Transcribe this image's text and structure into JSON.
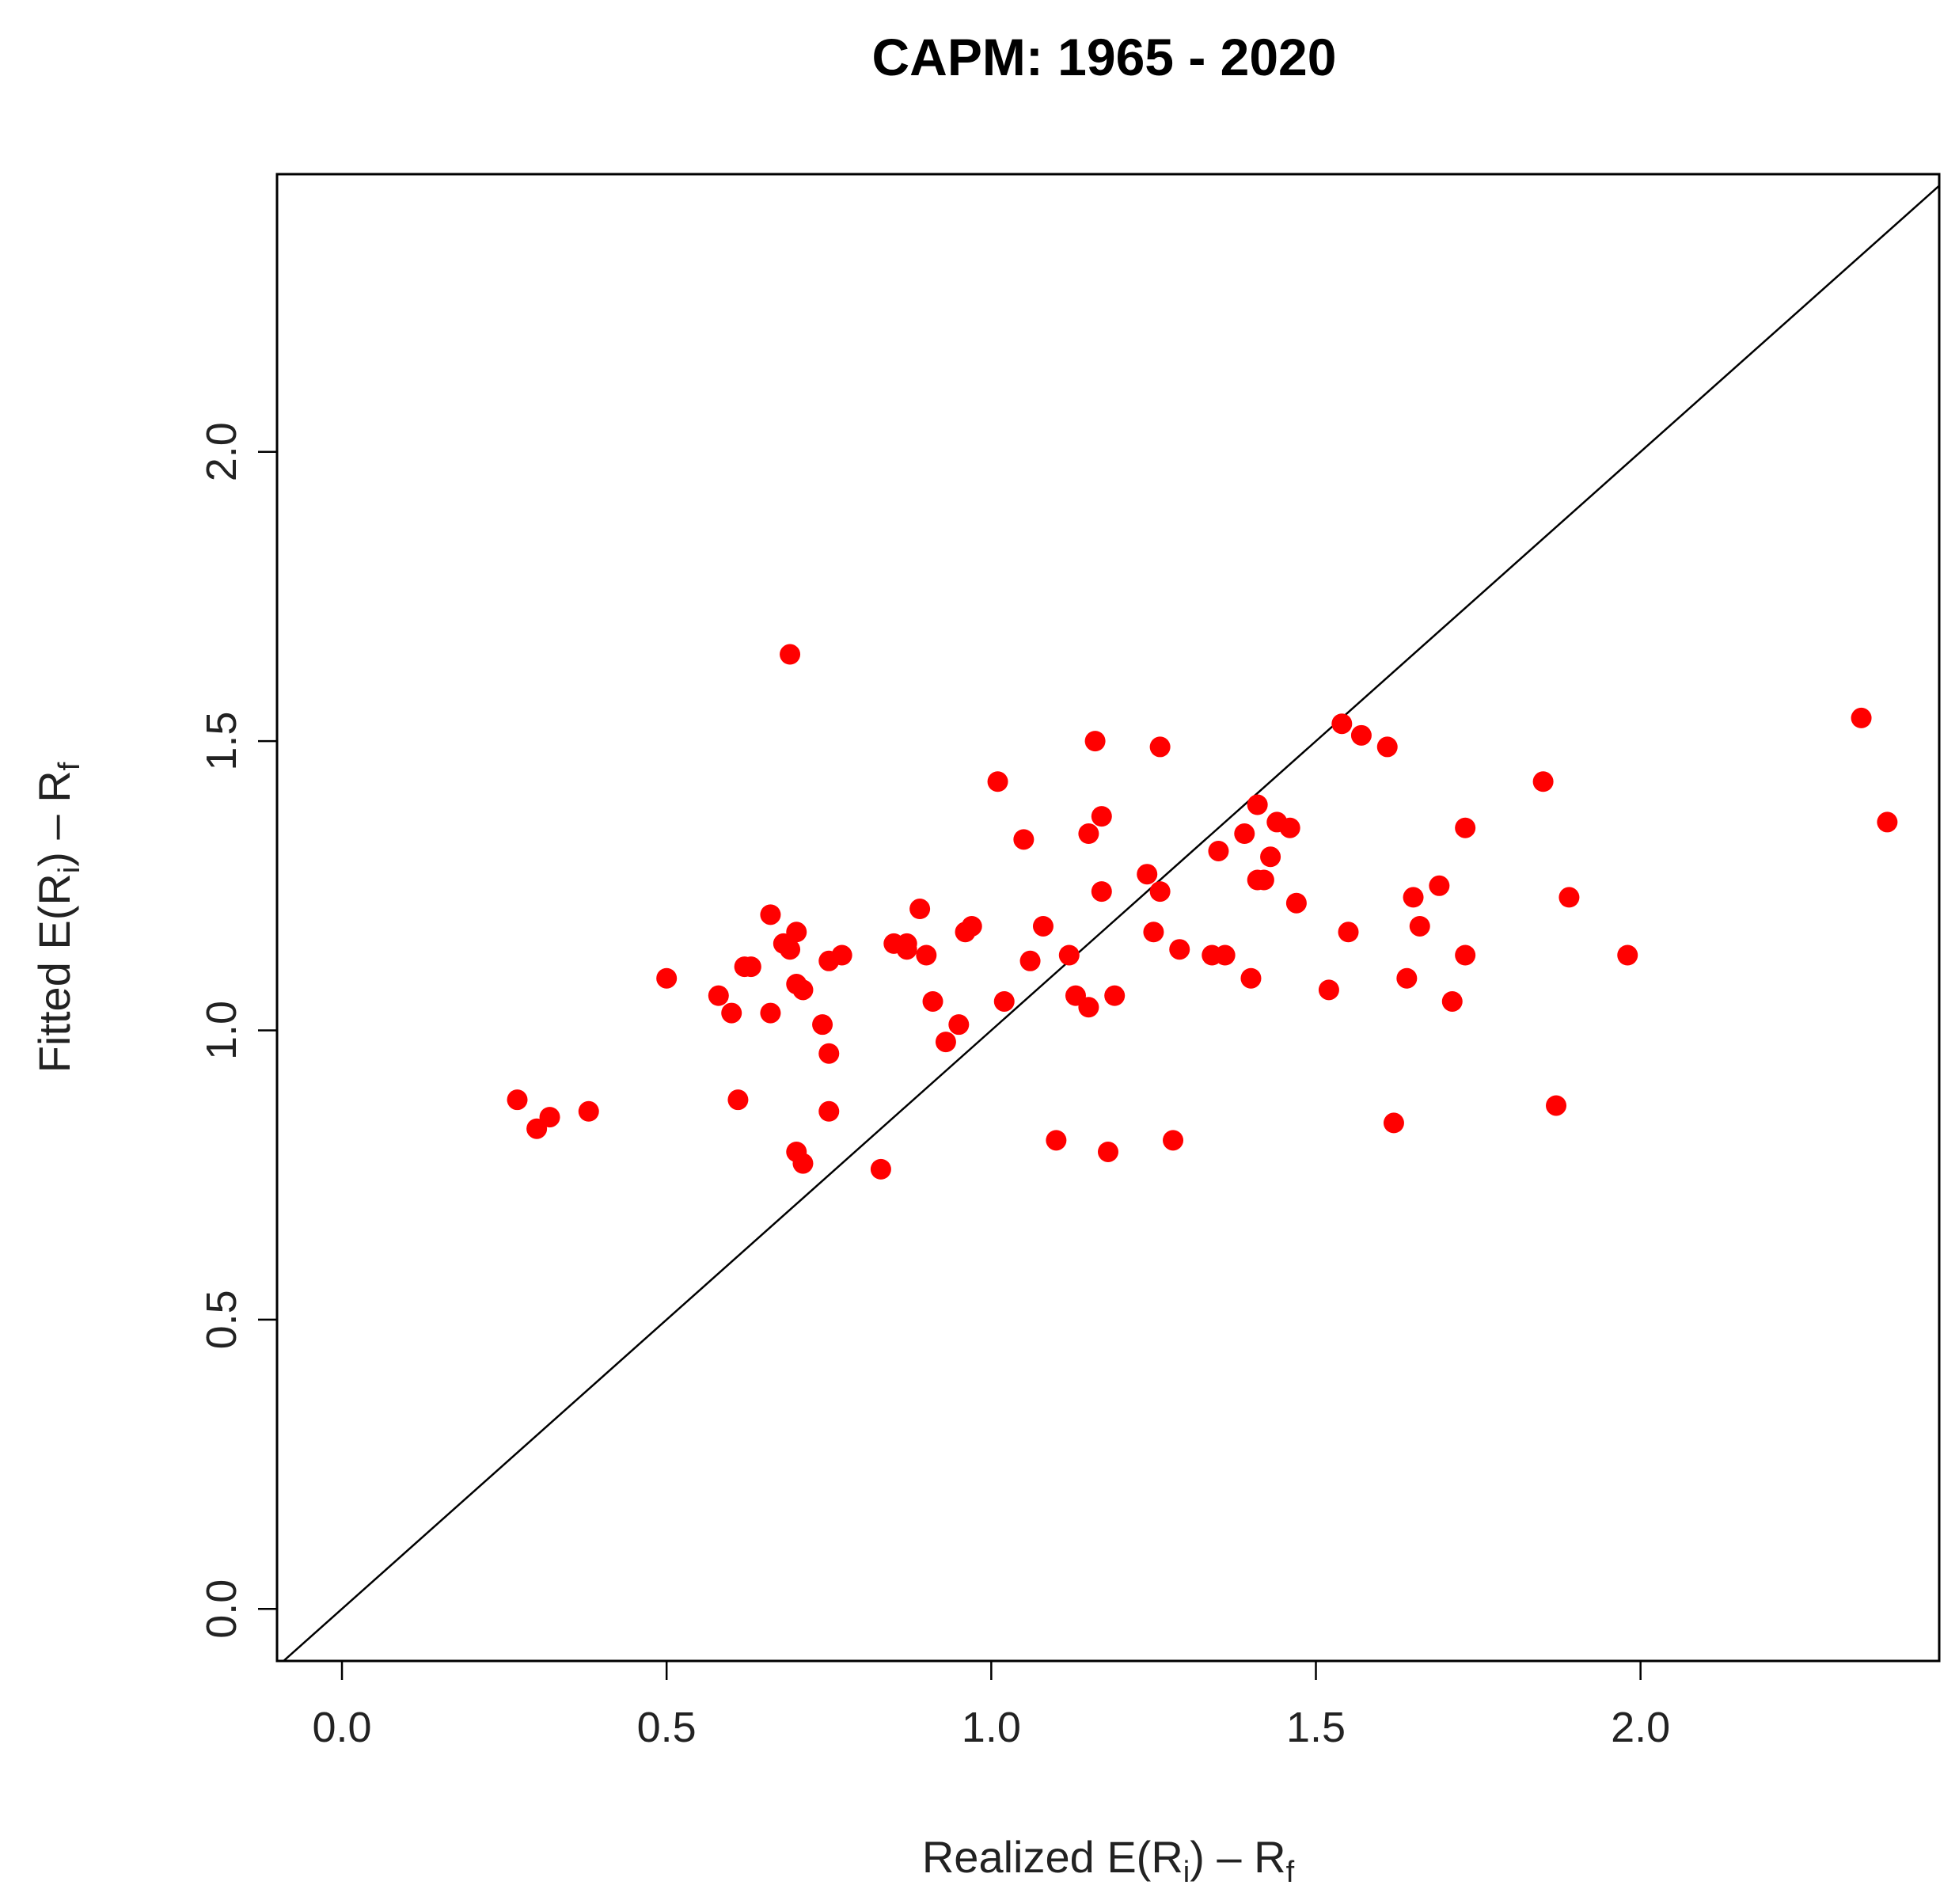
{
  "chart_data": {
    "type": "scatter",
    "title": "CAPM: 1965 - 2020",
    "xlabel": {
      "main": "Realized E(R",
      "sub_i": "i",
      "mid": ") – R",
      "sub_f": "f"
    },
    "ylabel": {
      "main": "Fitted E(R",
      "sub_i": "i",
      "mid": ") – R",
      "sub_f": "f"
    },
    "xlim": [
      -0.1,
      2.46
    ],
    "ylim": [
      -0.09,
      2.48
    ],
    "x_ticks": [
      0.0,
      0.5,
      1.0,
      1.5,
      2.0
    ],
    "y_ticks": [
      0.0,
      0.5,
      1.0,
      1.5,
      2.0
    ],
    "x_tick_labels": [
      "0.0",
      "0.5",
      "1.0",
      "1.5",
      "2.0"
    ],
    "y_tick_labels": [
      "0.0",
      "0.5",
      "1.0",
      "1.5",
      "2.0"
    ],
    "reference_line": "y = x",
    "point_color": "#ff0000",
    "line_color": "#000000",
    "points": [
      [
        0.27,
        0.88
      ],
      [
        0.3,
        0.83
      ],
      [
        0.32,
        0.85
      ],
      [
        0.38,
        0.86
      ],
      [
        0.5,
        1.09
      ],
      [
        0.58,
        1.06
      ],
      [
        0.6,
        1.03
      ],
      [
        0.61,
        0.88
      ],
      [
        0.62,
        1.11
      ],
      [
        0.63,
        1.11
      ],
      [
        0.66,
        1.2
      ],
      [
        0.66,
        1.03
      ],
      [
        0.68,
        1.15
      ],
      [
        0.69,
        1.65
      ],
      [
        0.69,
        1.14
      ],
      [
        0.7,
        1.17
      ],
      [
        0.7,
        1.08
      ],
      [
        0.7,
        0.79
      ],
      [
        0.71,
        1.07
      ],
      [
        0.71,
        0.77
      ],
      [
        0.74,
        1.01
      ],
      [
        0.75,
        0.96
      ],
      [
        0.75,
        1.12
      ],
      [
        0.75,
        0.86
      ],
      [
        0.77,
        1.13
      ],
      [
        0.83,
        0.76
      ],
      [
        0.85,
        1.15
      ],
      [
        0.87,
        1.15
      ],
      [
        0.87,
        1.14
      ],
      [
        0.89,
        1.21
      ],
      [
        0.9,
        1.13
      ],
      [
        0.91,
        1.05
      ],
      [
        0.93,
        0.98
      ],
      [
        0.95,
        1.01
      ],
      [
        0.96,
        1.17
      ],
      [
        0.97,
        1.18
      ],
      [
        1.01,
        1.43
      ],
      [
        1.02,
        1.05
      ],
      [
        1.05,
        1.33
      ],
      [
        1.06,
        1.12
      ],
      [
        1.08,
        1.18
      ],
      [
        1.1,
        0.81
      ],
      [
        1.12,
        1.13
      ],
      [
        1.13,
        1.06
      ],
      [
        1.15,
        1.04
      ],
      [
        1.15,
        1.34
      ],
      [
        1.16,
        1.5
      ],
      [
        1.17,
        1.37
      ],
      [
        1.17,
        1.24
      ],
      [
        1.18,
        0.79
      ],
      [
        1.19,
        1.06
      ],
      [
        1.24,
        1.27
      ],
      [
        1.25,
        1.17
      ],
      [
        1.26,
        1.24
      ],
      [
        1.26,
        1.49
      ],
      [
        1.28,
        0.81
      ],
      [
        1.29,
        1.14
      ],
      [
        1.34,
        1.13
      ],
      [
        1.35,
        1.31
      ],
      [
        1.36,
        1.13
      ],
      [
        1.39,
        1.34
      ],
      [
        1.4,
        1.09
      ],
      [
        1.41,
        1.39
      ],
      [
        1.41,
        1.26
      ],
      [
        1.42,
        1.26
      ],
      [
        1.43,
        1.3
      ],
      [
        1.44,
        1.36
      ],
      [
        1.46,
        1.35
      ],
      [
        1.47,
        1.22
      ],
      [
        1.52,
        1.07
      ],
      [
        1.54,
        1.53
      ],
      [
        1.55,
        1.17
      ],
      [
        1.57,
        1.51
      ],
      [
        1.61,
        1.49
      ],
      [
        1.62,
        0.84
      ],
      [
        1.64,
        1.09
      ],
      [
        1.65,
        1.23
      ],
      [
        1.66,
        1.18
      ],
      [
        1.69,
        1.25
      ],
      [
        1.71,
        1.05
      ],
      [
        1.73,
        1.35
      ],
      [
        1.73,
        1.13
      ],
      [
        1.85,
        1.43
      ],
      [
        1.87,
        0.87
      ],
      [
        1.89,
        1.23
      ],
      [
        1.98,
        1.13
      ],
      [
        2.34,
        1.54
      ],
      [
        2.38,
        1.36
      ]
    ]
  }
}
